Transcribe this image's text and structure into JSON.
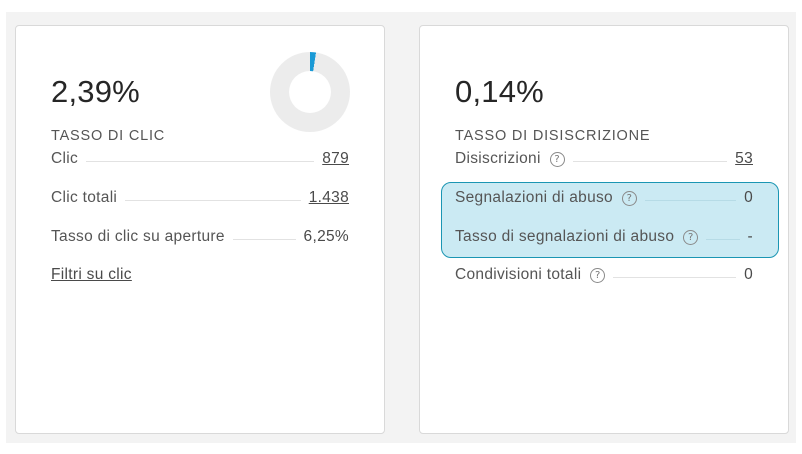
{
  "left_card": {
    "big_value": "2,39%",
    "big_label": "TASSO DI CLIC",
    "donut_percent": 2.39,
    "donut_colors": {
      "fill": "#1a9ad6",
      "track": "#ececec"
    },
    "rows": [
      {
        "label": "Clic",
        "value": "879",
        "link": true
      },
      {
        "label": "Clic totali",
        "value": "1.438",
        "link": true
      },
      {
        "label": "Tasso di clic su aperture",
        "value": "6,25%",
        "link": false
      }
    ],
    "filter_link": "Filtri su clic"
  },
  "right_card": {
    "big_value": "0,14%",
    "big_label": "TASSO DI DISISCRIZIONE",
    "help_icon": "?",
    "rows": [
      {
        "label": "Disiscrizioni",
        "value": "53",
        "link": true,
        "help": true
      },
      {
        "label": "Segnalazioni di abuso",
        "value": "0",
        "link": false,
        "help": true
      },
      {
        "label": "Tasso di segnalazioni di abuso",
        "value": "-",
        "link": false,
        "help": true
      },
      {
        "label": "Condivisioni totali",
        "value": "0",
        "link": false,
        "help": true
      }
    ],
    "highlight_colors": {
      "fill": "#cbeaf3",
      "border": "#1b96b3"
    }
  }
}
